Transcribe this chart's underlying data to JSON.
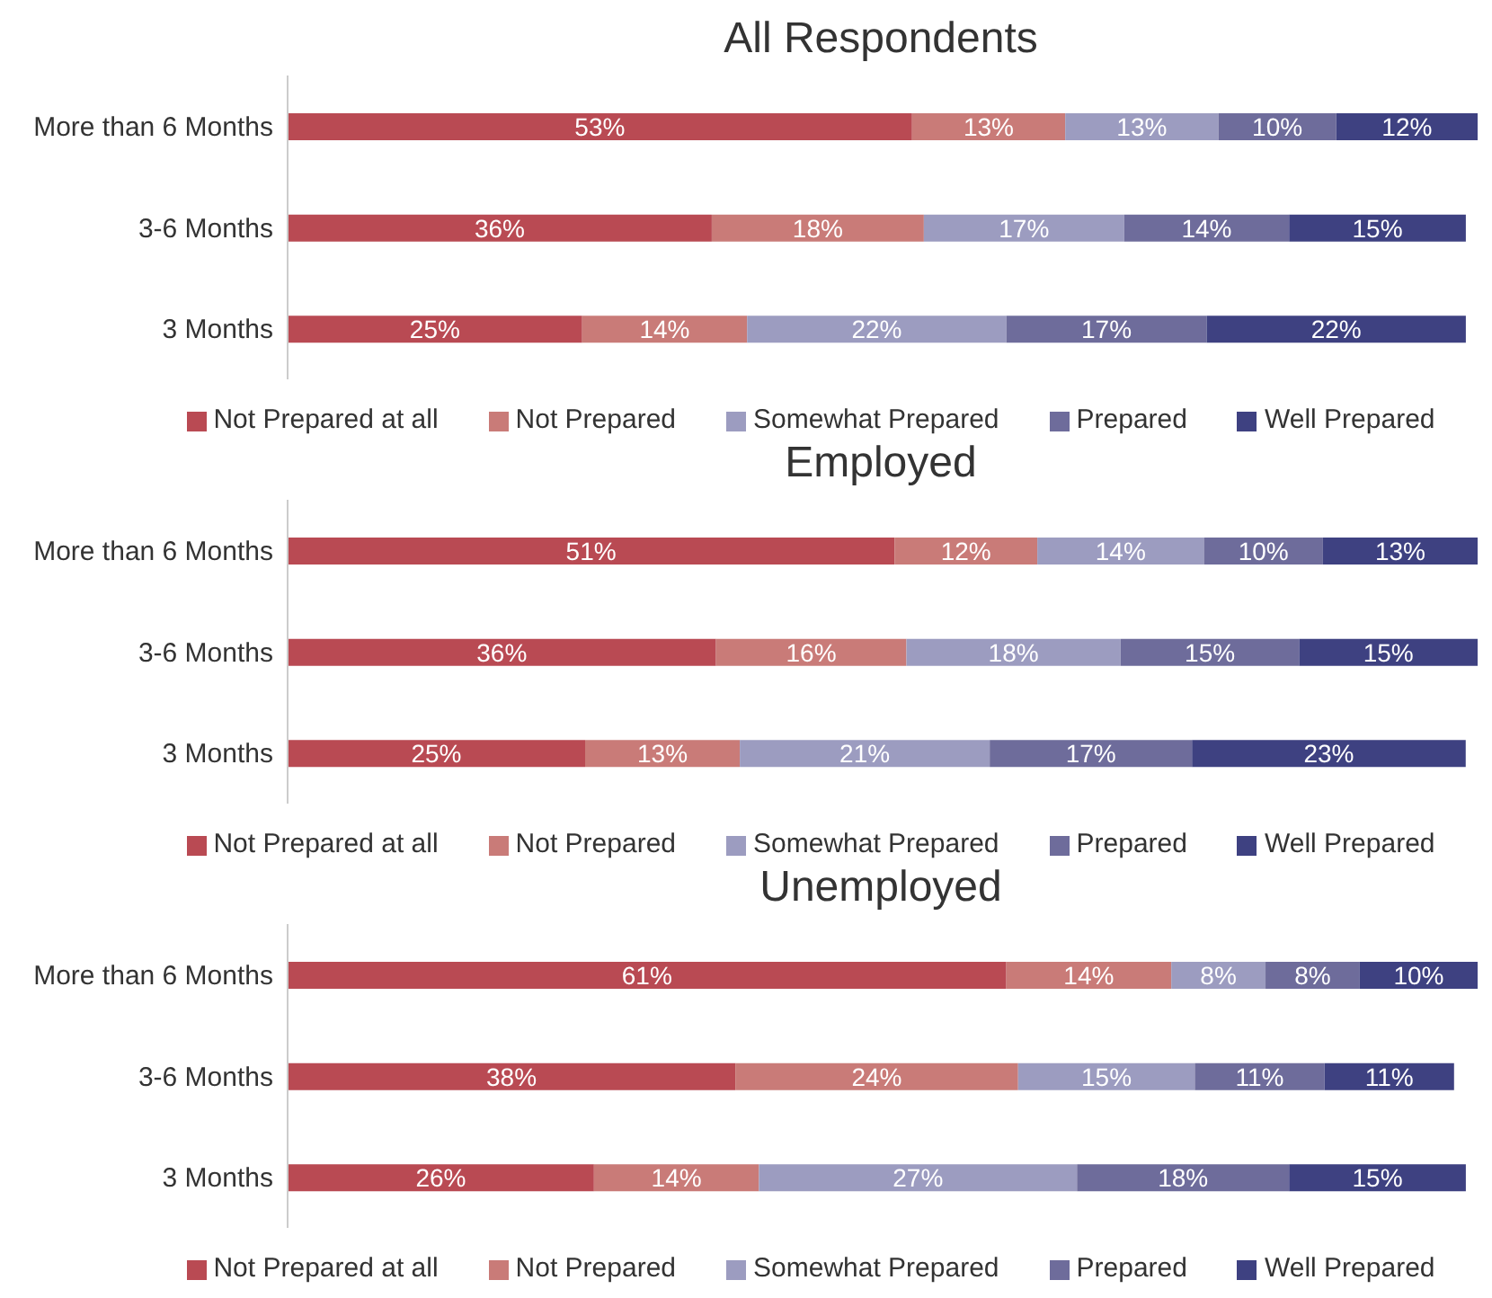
{
  "chart_data": [
    {
      "type": "bar",
      "title": "All Respondents",
      "orientation": "horizontal",
      "stacked": true,
      "tick_labels": "y",
      "legend": "bottom",
      "grid": false,
      "categories": [
        "More than 6 Months",
        "3-6 Months",
        "3 Months"
      ],
      "series": [
        {
          "name": "Not Prepared at all",
          "color": "#b94a53",
          "values": [
            53,
            36,
            25
          ],
          "value_labels": [
            "53%",
            "36%",
            "25%"
          ]
        },
        {
          "name": "Not Prepared",
          "color": "#c97b78",
          "values": [
            13,
            18,
            14
          ],
          "value_labels": [
            "13%",
            "18%",
            "14%"
          ]
        },
        {
          "name": "Somewhat Prepared",
          "color": "#9c9cc0",
          "values": [
            13,
            17,
            22
          ],
          "value_labels": [
            "13%",
            "17%",
            "22%"
          ]
        },
        {
          "name": "Prepared",
          "color": "#6e6c9b",
          "values": [
            10,
            14,
            17
          ],
          "value_labels": [
            "10%",
            "14%",
            "17%"
          ]
        },
        {
          "name": "Well Prepared",
          "color": "#3e4181",
          "values": [
            12,
            15,
            22
          ],
          "value_labels": [
            "12%",
            "15%",
            "22%"
          ]
        }
      ]
    },
    {
      "type": "bar",
      "title": "Employed",
      "orientation": "horizontal",
      "stacked": true,
      "tick_labels": "y",
      "legend": "bottom",
      "grid": false,
      "categories": [
        "More than 6 Months",
        "3-6 Months",
        "3 Months"
      ],
      "series": [
        {
          "name": "Not Prepared at all",
          "color": "#b94a53",
          "values": [
            51,
            36,
            25
          ],
          "value_labels": [
            "51%",
            "36%",
            "25%"
          ]
        },
        {
          "name": "Not Prepared",
          "color": "#c97b78",
          "values": [
            12,
            16,
            13
          ],
          "value_labels": [
            "12%",
            "16%",
            "13%"
          ]
        },
        {
          "name": "Somewhat Prepared",
          "color": "#9c9cc0",
          "values": [
            14,
            18,
            21
          ],
          "value_labels": [
            "14%",
            "18%",
            "21%"
          ]
        },
        {
          "name": "Prepared",
          "color": "#6e6c9b",
          "values": [
            10,
            15,
            17
          ],
          "value_labels": [
            "10%",
            "15%",
            "17%"
          ]
        },
        {
          "name": "Well Prepared",
          "color": "#3e4181",
          "values": [
            13,
            15,
            23
          ],
          "value_labels": [
            "13%",
            "15%",
            "23%"
          ]
        }
      ]
    },
    {
      "type": "bar",
      "title": "Unemployed",
      "orientation": "horizontal",
      "stacked": true,
      "tick_labels": "y",
      "legend": "bottom",
      "grid": false,
      "categories": [
        "More than 6 Months",
        "3-6 Months",
        "3 Months"
      ],
      "series": [
        {
          "name": "Not Prepared at all",
          "color": "#b94a53",
          "values": [
            61,
            38,
            26
          ],
          "value_labels": [
            "61%",
            "38%",
            "26%"
          ]
        },
        {
          "name": "Not Prepared",
          "color": "#c97b78",
          "values": [
            14,
            24,
            14
          ],
          "value_labels": [
            "14%",
            "24%",
            "14%"
          ]
        },
        {
          "name": "Somewhat Prepared",
          "color": "#9c9cc0",
          "values": [
            8,
            15,
            27
          ],
          "value_labels": [
            "8%",
            "15%",
            "27%"
          ]
        },
        {
          "name": "Prepared",
          "color": "#6e6c9b",
          "values": [
            8,
            11,
            18
          ],
          "value_labels": [
            "8%",
            "11%",
            "18%"
          ]
        },
        {
          "name": "Well Prepared",
          "color": "#3e4181",
          "values": [
            10,
            11,
            15
          ],
          "value_labels": [
            "10%",
            "11%",
            "15%"
          ]
        }
      ]
    }
  ]
}
